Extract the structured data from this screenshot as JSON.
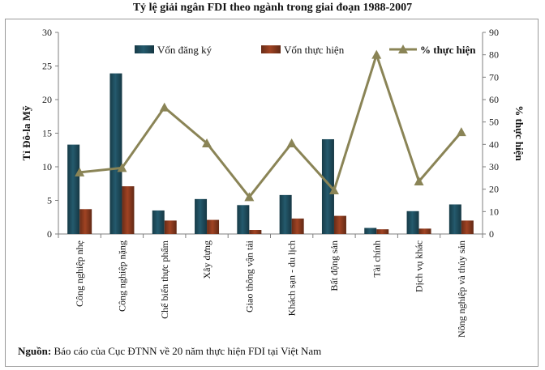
{
  "chart_data": {
    "type": "bar",
    "title": "Tỷ lệ giải ngân FDI theo ngành trong giai đoạn 1988-2007",
    "ylabel": "Tỉ Đô-la Mỹ",
    "y2label": "% thực hiện",
    "ylim": [
      0,
      30
    ],
    "y2lim": [
      0,
      90
    ],
    "yticks": [
      0,
      5,
      10,
      15,
      20,
      25,
      30
    ],
    "y2ticks": [
      0,
      10,
      20,
      30,
      40,
      50,
      60,
      70,
      80,
      90
    ],
    "legend_position": "top",
    "categories": [
      "Công nghiệp nhẹ",
      "Công nghiệp nặng",
      "Chế biến thực phẩm",
      "Xây dựng",
      "Giao thông vận tải",
      "Khách sạn - du lịch",
      "Bất động sản",
      "Tài chính",
      "Dịch vụ khác",
      "Nông nghiệp và thủy sản"
    ],
    "series": [
      {
        "name": "Vốn đăng ký",
        "type": "bar",
        "axis": "left",
        "color": "#1f4e5f",
        "values": [
          13.3,
          23.9,
          3.5,
          5.2,
          4.3,
          5.8,
          14.1,
          0.9,
          3.4,
          4.4
        ]
      },
      {
        "name": "Vốn thực hiện",
        "type": "bar",
        "axis": "left",
        "color": "#8b3a1e",
        "values": [
          3.7,
          7.1,
          2.0,
          2.1,
          0.6,
          2.3,
          2.7,
          0.7,
          0.8,
          2.0
        ]
      },
      {
        "name": "% thực hiện",
        "type": "line",
        "axis": "right",
        "color": "#8a8456",
        "values": [
          27.5,
          29.5,
          56.5,
          40.5,
          16.5,
          40.5,
          19.5,
          80.0,
          23.5,
          45.5
        ]
      }
    ],
    "source_label": "Nguồn:",
    "source_text": " Báo cáo của Cục ĐTNN về 20 năm thực hiện FDI tại Việt Nam"
  }
}
